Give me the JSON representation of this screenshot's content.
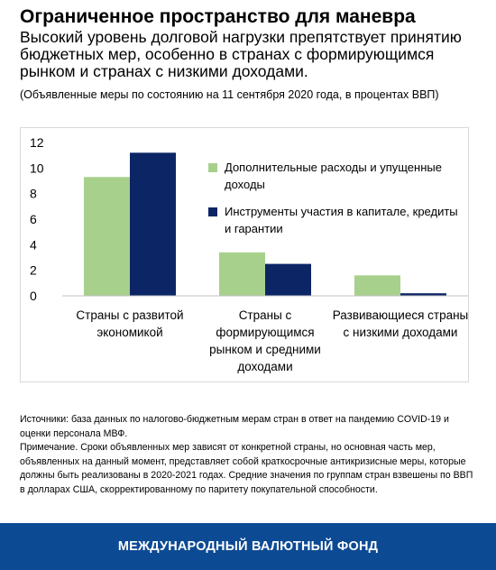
{
  "title": "Ограниченное пространство для маневра",
  "subtitle": "Высокий уровень долговой нагрузки препятствует принятию бюджетных мер, особенно в странах с формирующимся рынком и странах с низкими доходами.",
  "note": "(Объявленные меры по состоянию на 11 сентября 2020 года, в процентах ВВП)",
  "chart_data": {
    "type": "bar",
    "categories": [
      [
        "Страны с развитой",
        "экономикой"
      ],
      [
        "Страны с",
        "формирующимся",
        "рынком и средними",
        "доходами"
      ],
      [
        "Развивающиеся страны",
        "с низкими доходами"
      ]
    ],
    "series": [
      {
        "name": "Дополнительные расходы и упущенные доходы",
        "color": "#a8d08d",
        "values": [
          9.3,
          3.4,
          1.6
        ]
      },
      {
        "name": "Инструменты участия в капитале, кредиты и гарантии",
        "color": "#0b2565",
        "values": [
          11.2,
          2.5,
          0.2
        ]
      }
    ],
    "ylim": [
      0,
      12
    ],
    "yticks": [
      0,
      2,
      4,
      6,
      8,
      10,
      12
    ],
    "grid": false,
    "legend_position": "top-right"
  },
  "legend": [
    {
      "label": "Дополнительные расходы и упущенные доходы",
      "color": "#a8d08d"
    },
    {
      "label": "Инструменты участия в капитале, кредиты и гарантии",
      "color": "#0b2565"
    }
  ],
  "sources": {
    "source_text": "Источники: база данных по налогово-бюджетным мерам стран в ответ на пандемию COVID-19 и оценки персонала МВФ.",
    "note_text": "Примечание. Сроки объявленных мер зависят от конкретной страны, но основная часть мер, объявленных на данный момент, представляет собой краткосрочные антикризисные меры, которые должны быть реализованы в 2020-2021 годах. Средние значения по группам стран взвешены по ВВП в долларах США, скорректированному по паритету покупательной способности."
  },
  "footer": {
    "text": "МЕЖДУНАРОДНЫЙ ВАЛЮТНЫЙ ФОНД"
  }
}
